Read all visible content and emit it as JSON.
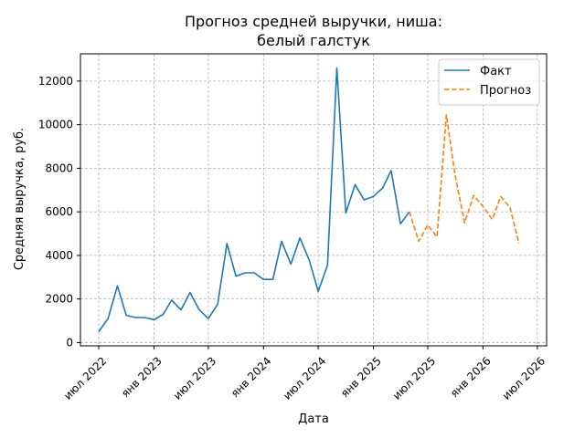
{
  "chart_data": {
    "type": "line",
    "title_lines": [
      "Прогноз средней выручки, ниша:",
      "белый галстук"
    ],
    "xlabel": "Дата",
    "ylabel": "Средняя выручка, руб.",
    "xlim": [
      "2022-05-01",
      "2026-08-01"
    ],
    "ylim": [
      -150,
      13250
    ],
    "x_ticks": [
      {
        "date": "2022-07-01",
        "label": "июл 2022"
      },
      {
        "date": "2023-01-01",
        "label": "янв 2023"
      },
      {
        "date": "2023-07-01",
        "label": "июл 2023"
      },
      {
        "date": "2024-01-01",
        "label": "янв 2024"
      },
      {
        "date": "2024-07-01",
        "label": "июл 2024"
      },
      {
        "date": "2025-01-01",
        "label": "янв 2025"
      },
      {
        "date": "2025-07-01",
        "label": "июл 2025"
      },
      {
        "date": "2026-01-01",
        "label": "янв 2026"
      },
      {
        "date": "2026-07-01",
        "label": "июл 2026"
      }
    ],
    "y_ticks": [
      0,
      2000,
      4000,
      6000,
      8000,
      10000,
      12000
    ],
    "grid": true,
    "legend_position": "top-right",
    "series": [
      {
        "name": "Факт",
        "color": "#1f77b4",
        "style": "solid",
        "points": [
          [
            "2022-07-01",
            500
          ],
          [
            "2022-08-01",
            1100
          ],
          [
            "2022-09-01",
            2600
          ],
          [
            "2022-10-01",
            1250
          ],
          [
            "2022-11-01",
            1150
          ],
          [
            "2022-12-01",
            1150
          ],
          [
            "2023-01-01",
            1050
          ],
          [
            "2023-02-01",
            1300
          ],
          [
            "2023-03-01",
            1950
          ],
          [
            "2023-04-01",
            1500
          ],
          [
            "2023-05-01",
            2300
          ],
          [
            "2023-06-01",
            1500
          ],
          [
            "2023-07-01",
            1100
          ],
          [
            "2023-08-01",
            1750
          ],
          [
            "2023-09-01",
            4550
          ],
          [
            "2023-10-01",
            3050
          ],
          [
            "2023-11-01",
            3200
          ],
          [
            "2023-12-01",
            3200
          ],
          [
            "2024-01-01",
            2900
          ],
          [
            "2024-02-01",
            2900
          ],
          [
            "2024-03-01",
            4650
          ],
          [
            "2024-04-01",
            3600
          ],
          [
            "2024-05-01",
            4800
          ],
          [
            "2024-06-01",
            3800
          ],
          [
            "2024-07-01",
            2350
          ],
          [
            "2024-08-01",
            3550
          ],
          [
            "2024-09-01",
            12600
          ],
          [
            "2024-10-01",
            5950
          ],
          [
            "2024-11-01",
            7250
          ],
          [
            "2024-12-01",
            6550
          ],
          [
            "2025-01-01",
            6700
          ],
          [
            "2025-02-01",
            7100
          ],
          [
            "2025-03-01",
            7900
          ],
          [
            "2025-04-01",
            5450
          ],
          [
            "2025-05-01",
            6000
          ]
        ]
      },
      {
        "name": "Прогноз",
        "color": "#ff7f0e",
        "style": "dashed",
        "points": [
          [
            "2025-05-01",
            6000
          ],
          [
            "2025-06-01",
            4650
          ],
          [
            "2025-07-01",
            5400
          ],
          [
            "2025-08-01",
            4850
          ],
          [
            "2025-09-01",
            10450
          ],
          [
            "2025-10-01",
            7600
          ],
          [
            "2025-11-01",
            5500
          ],
          [
            "2025-12-01",
            6750
          ],
          [
            "2026-01-01",
            6250
          ],
          [
            "2026-02-01",
            5650
          ],
          [
            "2026-03-01",
            6700
          ],
          [
            "2026-04-01",
            6200
          ],
          [
            "2026-05-01",
            4550
          ]
        ]
      }
    ]
  }
}
